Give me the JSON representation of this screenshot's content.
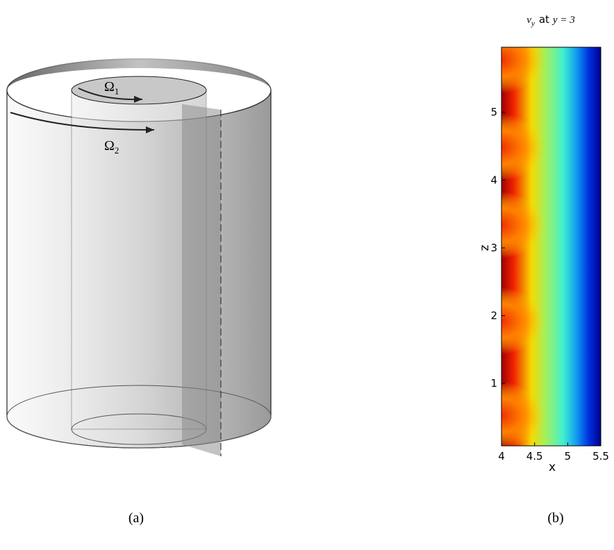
{
  "diagram": {
    "inner_label": {
      "symbol": "Ω",
      "subscript": "1"
    },
    "outer_label": {
      "symbol": "Ω",
      "subscript": "2"
    },
    "caption": "(a)"
  },
  "chart_data": {
    "type": "heatmap",
    "title_symbol": "v",
    "title_subscript": "y",
    "title_word": "at",
    "title_condition": "y = 3",
    "xlabel": "x",
    "ylabel": "z",
    "xlim": [
      4,
      5.5
    ],
    "ylim": [
      0.08,
      5.96
    ],
    "xticks": [
      4,
      4.5,
      5,
      5.5
    ],
    "yticks": [
      1,
      2,
      3,
      4,
      5
    ],
    "caption": "(b)"
  }
}
